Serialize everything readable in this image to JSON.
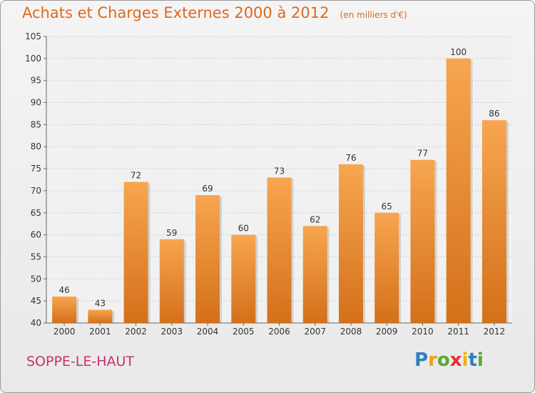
{
  "header": {
    "title": "Achats et Charges Externes 2000 à 2012",
    "subtitle": "(en milliers d'€)"
  },
  "footer": {
    "commune": "SOPPE-LE-HAUT",
    "logo": {
      "letters": [
        "P",
        "r",
        "o",
        "x",
        "i",
        "t",
        "i"
      ],
      "colors": [
        "#2d7fc1",
        "#f39c1e",
        "#5aa832",
        "#e5322d",
        "#f0b400",
        "#2d7fc1",
        "#5aa832"
      ]
    }
  },
  "chart_data": {
    "type": "bar",
    "title": "Achats et Charges Externes 2000 à 2012",
    "subtitle": "(en milliers d'€)",
    "categories": [
      "2000",
      "2001",
      "2002",
      "2003",
      "2004",
      "2005",
      "2006",
      "2007",
      "2008",
      "2009",
      "2010",
      "2011",
      "2012"
    ],
    "values": [
      46,
      43,
      72,
      59,
      69,
      60,
      73,
      62,
      76,
      65,
      77,
      100,
      86
    ],
    "ylim": [
      40,
      105
    ],
    "yticks": [
      40,
      45,
      50,
      55,
      60,
      65,
      70,
      75,
      80,
      85,
      90,
      95,
      100,
      105
    ],
    "grid": true,
    "bar_color_top": "#f7a64f",
    "bar_color_bottom": "#d4701a"
  }
}
